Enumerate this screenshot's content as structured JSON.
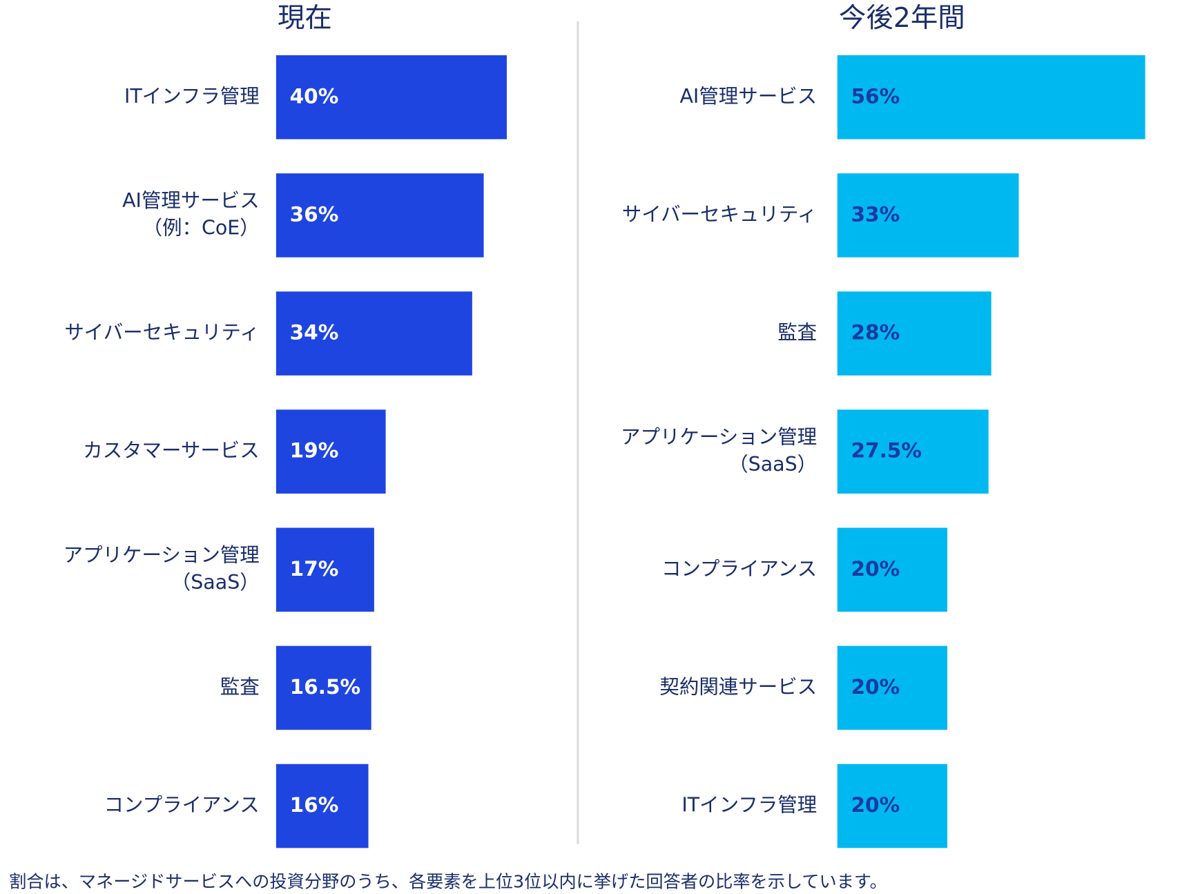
{
  "chart_data": [
    {
      "type": "bar",
      "title": "現在",
      "color": "#1f45e0",
      "label_color": "#ffffff",
      "categories": [
        "ITインフラ管理",
        "AI管理サービス\n（例：CoE）",
        "サイバーセキュリティ",
        "カスタマーサービス",
        "アプリケーション管理\n（SaaS）",
        "監査",
        "コンプライアンス"
      ],
      "values": [
        40,
        36,
        34,
        19,
        17,
        16.5,
        16
      ],
      "value_labels": [
        "40%",
        "36%",
        "34%",
        "19%",
        "17%",
        "16.5%",
        "16%"
      ]
    },
    {
      "type": "bar",
      "title": "今後2年間",
      "color": "#00b8f0",
      "label_color": "#1a3aa0",
      "categories": [
        "AI管理サービス",
        "サイバーセキュリティ",
        "監査",
        "アプリケーション管理\n（SaaS）",
        "コンプライアンス",
        "契約関連サービス",
        "ITインフラ管理"
      ],
      "values": [
        56,
        33,
        28,
        27.5,
        20,
        20,
        20
      ],
      "value_labels": [
        "56%",
        "33%",
        "28%",
        "27.5%",
        "20%",
        "20%",
        "20%"
      ]
    }
  ],
  "footnote": "割合は、マネージドサービスへの投資分野のうち、各要素を上位3位以内に挙げた回答者の比率を示しています。"
}
